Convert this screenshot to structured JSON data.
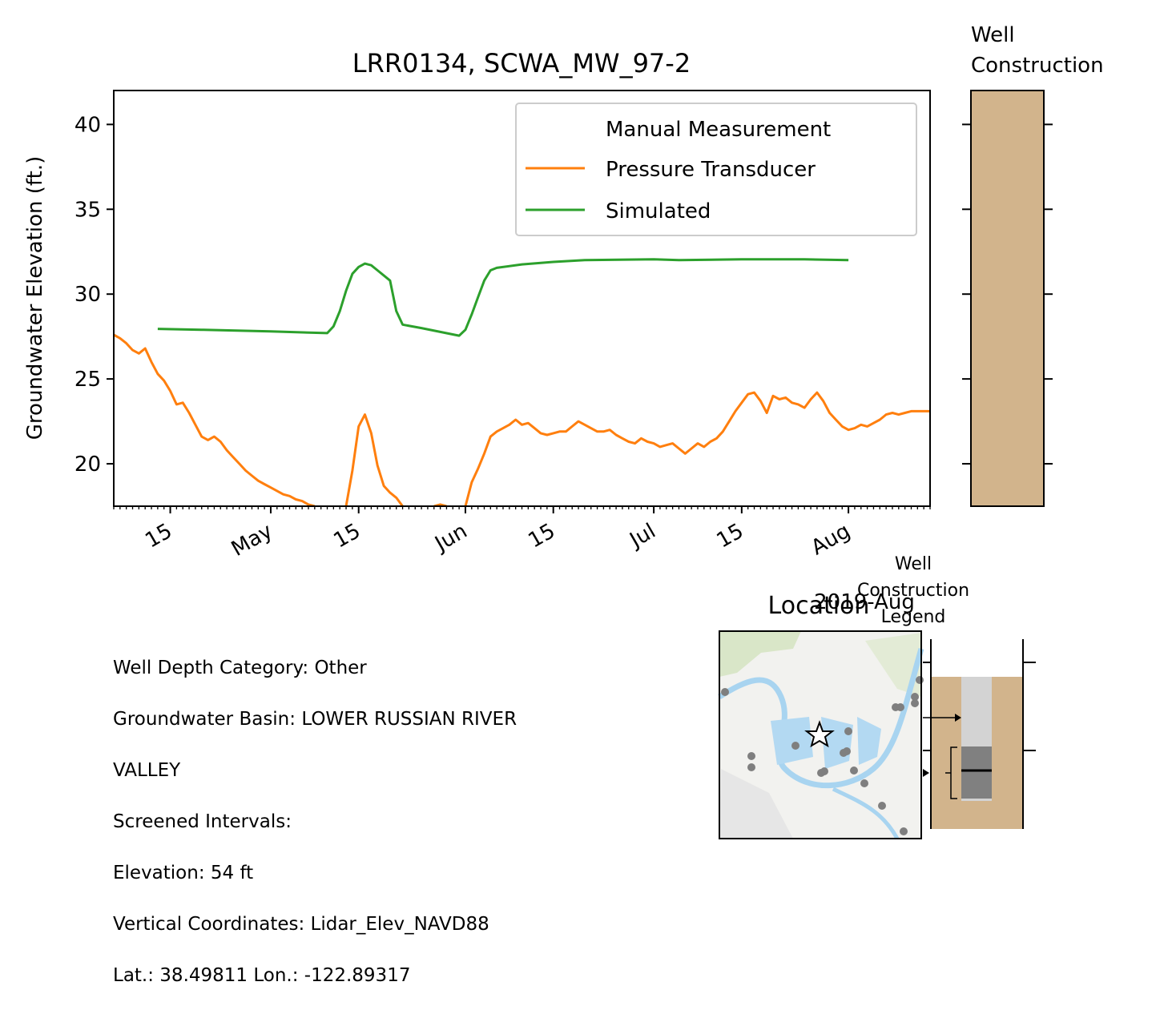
{
  "chart_data": {
    "type": "line",
    "title": "LRR0134, SCWA_MW_97-2",
    "ylabel": "Groundwater Elevation (ft.)",
    "xlabel": "",
    "year_label": "2019-Aug",
    "ylim": [
      17.5,
      42.0
    ],
    "yticks": [
      20,
      25,
      30,
      35,
      40
    ],
    "xlim": [
      "2019-04-06",
      "2019-08-14"
    ],
    "xticks": [
      {
        "date": "2019-04-15",
        "label": "15"
      },
      {
        "date": "2019-05-01",
        "label": "May"
      },
      {
        "date": "2019-05-15",
        "label": "15"
      },
      {
        "date": "2019-06-01",
        "label": "Jun"
      },
      {
        "date": "2019-06-15",
        "label": "15"
      },
      {
        "date": "2019-07-01",
        "label": "Jul"
      },
      {
        "date": "2019-07-15",
        "label": "15"
      },
      {
        "date": "2019-08-01",
        "label": "Aug"
      }
    ],
    "legend_position": "top-right",
    "grid": false,
    "series": [
      {
        "name": "Manual Measurement",
        "color": "#1f77b4",
        "style": "marker",
        "points": []
      },
      {
        "name": "Pressure Transducer",
        "color": "#ff7f0e",
        "style": "line",
        "points": [
          [
            "2019-04-06",
            27.6
          ],
          [
            "2019-04-07",
            27.4
          ],
          [
            "2019-04-08",
            27.1
          ],
          [
            "2019-04-09",
            26.7
          ],
          [
            "2019-04-10",
            26.5
          ],
          [
            "2019-04-11",
            26.8
          ],
          [
            "2019-04-12",
            26.0
          ],
          [
            "2019-04-13",
            25.3
          ],
          [
            "2019-04-14",
            24.9
          ],
          [
            "2019-04-15",
            24.3
          ],
          [
            "2019-04-16",
            23.5
          ],
          [
            "2019-04-17",
            23.6
          ],
          [
            "2019-04-18",
            23.0
          ],
          [
            "2019-04-19",
            22.3
          ],
          [
            "2019-04-20",
            21.6
          ],
          [
            "2019-04-21",
            21.4
          ],
          [
            "2019-04-22",
            21.6
          ],
          [
            "2019-04-23",
            21.3
          ],
          [
            "2019-04-24",
            20.8
          ],
          [
            "2019-04-25",
            20.4
          ],
          [
            "2019-04-26",
            20.0
          ],
          [
            "2019-04-27",
            19.6
          ],
          [
            "2019-04-28",
            19.3
          ],
          [
            "2019-04-29",
            19.0
          ],
          [
            "2019-04-30",
            18.8
          ],
          [
            "2019-05-01",
            18.6
          ],
          [
            "2019-05-02",
            18.4
          ],
          [
            "2019-05-03",
            18.2
          ],
          [
            "2019-05-04",
            18.1
          ],
          [
            "2019-05-05",
            17.9
          ],
          [
            "2019-05-06",
            17.8
          ],
          [
            "2019-05-07",
            17.6
          ],
          [
            "2019-05-08",
            17.5
          ]
        ],
        "segments_after": [
          [
            [
              "2019-05-13",
              17.5
            ],
            [
              "2019-05-14",
              19.6
            ],
            [
              "2019-05-15",
              22.2
            ],
            [
              "2019-05-16",
              22.9
            ],
            [
              "2019-05-17",
              21.8
            ],
            [
              "2019-05-18",
              19.9
            ],
            [
              "2019-05-19",
              18.7
            ],
            [
              "2019-05-20",
              18.3
            ],
            [
              "2019-05-21",
              18.0
            ],
            [
              "2019-05-22",
              17.5
            ]
          ],
          [
            [
              "2019-05-27",
              17.5
            ],
            [
              "2019-05-28",
              17.6
            ],
            [
              "2019-05-29",
              17.5
            ]
          ],
          [
            [
              "2019-06-01",
              17.5
            ],
            [
              "2019-06-02",
              18.9
            ],
            [
              "2019-06-03",
              19.7
            ],
            [
              "2019-06-04",
              20.6
            ],
            [
              "2019-06-05",
              21.6
            ],
            [
              "2019-06-06",
              21.9
            ],
            [
              "2019-06-07",
              22.1
            ],
            [
              "2019-06-08",
              22.3
            ],
            [
              "2019-06-09",
              22.6
            ],
            [
              "2019-06-10",
              22.3
            ],
            [
              "2019-06-11",
              22.4
            ],
            [
              "2019-06-12",
              22.1
            ],
            [
              "2019-06-13",
              21.8
            ],
            [
              "2019-06-14",
              21.7
            ],
            [
              "2019-06-15",
              21.8
            ],
            [
              "2019-06-16",
              21.9
            ],
            [
              "2019-06-17",
              21.9
            ],
            [
              "2019-06-18",
              22.2
            ],
            [
              "2019-06-19",
              22.5
            ],
            [
              "2019-06-20",
              22.3
            ],
            [
              "2019-06-21",
              22.1
            ],
            [
              "2019-06-22",
              21.9
            ],
            [
              "2019-06-23",
              21.9
            ],
            [
              "2019-06-24",
              22.0
            ],
            [
              "2019-06-25",
              21.7
            ],
            [
              "2019-06-26",
              21.5
            ],
            [
              "2019-06-27",
              21.3
            ],
            [
              "2019-06-28",
              21.2
            ],
            [
              "2019-06-29",
              21.5
            ],
            [
              "2019-06-30",
              21.3
            ],
            [
              "2019-07-01",
              21.2
            ],
            [
              "2019-07-02",
              21.0
            ],
            [
              "2019-07-03",
              21.1
            ],
            [
              "2019-07-04",
              21.2
            ],
            [
              "2019-07-05",
              20.9
            ],
            [
              "2019-07-06",
              20.6
            ],
            [
              "2019-07-07",
              20.9
            ],
            [
              "2019-07-08",
              21.2
            ],
            [
              "2019-07-09",
              21.0
            ],
            [
              "2019-07-10",
              21.3
            ],
            [
              "2019-07-11",
              21.5
            ],
            [
              "2019-07-12",
              21.9
            ],
            [
              "2019-07-13",
              22.5
            ],
            [
              "2019-07-14",
              23.1
            ],
            [
              "2019-07-15",
              23.6
            ],
            [
              "2019-07-16",
              24.1
            ],
            [
              "2019-07-17",
              24.2
            ],
            [
              "2019-07-18",
              23.7
            ],
            [
              "2019-07-19",
              23.0
            ],
            [
              "2019-07-20",
              24.0
            ],
            [
              "2019-07-21",
              23.8
            ],
            [
              "2019-07-22",
              23.9
            ],
            [
              "2019-07-23",
              23.6
            ],
            [
              "2019-07-24",
              23.5
            ],
            [
              "2019-07-25",
              23.3
            ],
            [
              "2019-07-26",
              23.8
            ],
            [
              "2019-07-27",
              24.2
            ],
            [
              "2019-07-28",
              23.7
            ],
            [
              "2019-07-29",
              23.0
            ],
            [
              "2019-07-30",
              22.6
            ],
            [
              "2019-07-31",
              22.2
            ],
            [
              "2019-08-01",
              22.0
            ],
            [
              "2019-08-02",
              22.1
            ],
            [
              "2019-08-03",
              22.3
            ],
            [
              "2019-08-04",
              22.2
            ],
            [
              "2019-08-05",
              22.4
            ],
            [
              "2019-08-06",
              22.6
            ],
            [
              "2019-08-07",
              22.9
            ],
            [
              "2019-08-08",
              23.0
            ],
            [
              "2019-08-09",
              22.9
            ],
            [
              "2019-08-10",
              23.0
            ],
            [
              "2019-08-11",
              23.1
            ],
            [
              "2019-08-14",
              23.1
            ]
          ]
        ]
      },
      {
        "name": "Simulated",
        "color": "#2ca02c",
        "style": "line",
        "points": [
          [
            "2019-04-13",
            27.95
          ],
          [
            "2019-04-20",
            27.9
          ],
          [
            "2019-05-01",
            27.8
          ],
          [
            "2019-05-10",
            27.7
          ],
          [
            "2019-05-11",
            28.1
          ],
          [
            "2019-05-12",
            29.0
          ],
          [
            "2019-05-13",
            30.2
          ],
          [
            "2019-05-14",
            31.2
          ],
          [
            "2019-05-15",
            31.6
          ],
          [
            "2019-05-16",
            31.8
          ],
          [
            "2019-05-17",
            31.7
          ],
          [
            "2019-05-18",
            31.4
          ],
          [
            "2019-05-19",
            31.1
          ],
          [
            "2019-05-20",
            30.8
          ],
          [
            "2019-05-21",
            29.0
          ],
          [
            "2019-05-22",
            28.2
          ],
          [
            "2019-05-25",
            28.0
          ],
          [
            "2019-05-31",
            27.55
          ],
          [
            "2019-06-01",
            27.9
          ],
          [
            "2019-06-02",
            28.8
          ],
          [
            "2019-06-03",
            29.8
          ],
          [
            "2019-06-04",
            30.8
          ],
          [
            "2019-06-05",
            31.4
          ],
          [
            "2019-06-06",
            31.55
          ],
          [
            "2019-06-10",
            31.75
          ],
          [
            "2019-06-15",
            31.9
          ],
          [
            "2019-06-20",
            32.0
          ],
          [
            "2019-07-01",
            32.05
          ],
          [
            "2019-07-05",
            32.0
          ],
          [
            "2019-07-15",
            32.05
          ],
          [
            "2019-07-25",
            32.05
          ],
          [
            "2019-08-01",
            32.0
          ]
        ]
      }
    ]
  },
  "well_panel": {
    "title_line1": "Well",
    "title_line2": "Construction",
    "fill_color": "#d2b48c"
  },
  "legend_panel": {
    "title_line1": "Well",
    "title_line2": "Construction",
    "title_line3": "Legend",
    "sand_color": "#d2b48c"
  },
  "map": {
    "title": "Location"
  },
  "info": {
    "lines": [
      "Well Depth Category: Other",
      "Groundwater Basin: LOWER RUSSIAN RIVER",
      "VALLEY",
      "Screened Intervals:",
      "Elevation: 54 ft",
      "Vertical Coordinates: Lidar_Elev_NAVD88",
      "Lat.: 38.49811 Lon.: -122.89317"
    ]
  }
}
